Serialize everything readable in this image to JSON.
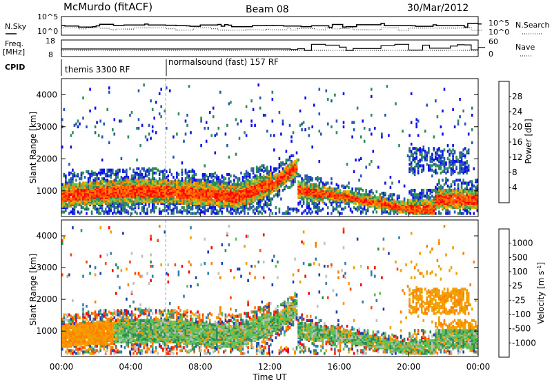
{
  "header": {
    "station": "McMurdo (fitACF)",
    "beam": "Beam 08",
    "date": "30/Mar/2012"
  },
  "labels": {
    "nsky": "N.Sky",
    "freq_line1": "Freq.",
    "freq_line2": "[MHz]",
    "cpid": "CPID",
    "nsearch": "N.Search",
    "nave": "Nave",
    "xlabel": "Time UT",
    "power_axis": "Power [dB]",
    "velocity_axis": "Velocity [m s",
    "velocity_exp": "-1",
    "velocity_close": "]"
  },
  "noise_panel": {
    "left_ticks": [
      "10^5",
      "10^0"
    ],
    "right_ticks": [
      "10^5",
      "10^0"
    ]
  },
  "freq_panel": {
    "left_ticks": [
      "18",
      "8"
    ],
    "right_ticks": [
      "60",
      "0"
    ]
  },
  "cpid_panel": {
    "segments": [
      {
        "start_hour": 0,
        "label": "themis 3300 RF"
      },
      {
        "start_hour": 6,
        "label": "normalsound (fast) 157 RF"
      }
    ]
  },
  "chart_data": [
    {
      "type": "heatmap",
      "title": "Power",
      "xlabel": "Time UT",
      "ylabel": "Slant Range [km]",
      "xlim_hours": [
        0,
        24
      ],
      "ylim_km": [
        200,
        4500
      ],
      "x_ticks": [
        "00:00",
        "04:00",
        "08:00",
        "12:00",
        "16:00",
        "20:00",
        "00:00"
      ],
      "y_ticks": [
        "1000",
        "2000",
        "3000",
        "4000"
      ],
      "colorbar": {
        "label": "Power [dB]",
        "ticks": [
          "4",
          "8",
          "12",
          "16",
          "20",
          "24",
          "28"
        ],
        "colors": [
          "#1010ee",
          "#2856b4",
          "#2e8b57",
          "#5bc15b",
          "#f2b700",
          "#ff7f00",
          "#ff4500",
          "#ff0000"
        ]
      }
    },
    {
      "type": "heatmap",
      "title": "Velocity",
      "xlabel": "Time UT",
      "ylabel": "Slant Range [km]",
      "xlim_hours": [
        0,
        24
      ],
      "ylim_km": [
        200,
        4500
      ],
      "x_ticks": [
        "00:00",
        "04:00",
        "08:00",
        "12:00",
        "16:00",
        "20:00",
        "00:00"
      ],
      "y_ticks": [
        "1000",
        "2000",
        "3000",
        "4000"
      ],
      "colorbar": {
        "label": "Velocity [m s-1]",
        "ticks": [
          "1000",
          "500",
          "100",
          "25",
          "-25",
          "-100",
          "-500",
          "-1000"
        ],
        "colors": [
          "#1a3fb0",
          "#2f7fb0",
          "#2e8b57",
          "#5bc15b",
          "#c0c0c0",
          "#f2a000",
          "#ff7f00",
          "#ff4500",
          "#ff0000"
        ]
      }
    }
  ]
}
